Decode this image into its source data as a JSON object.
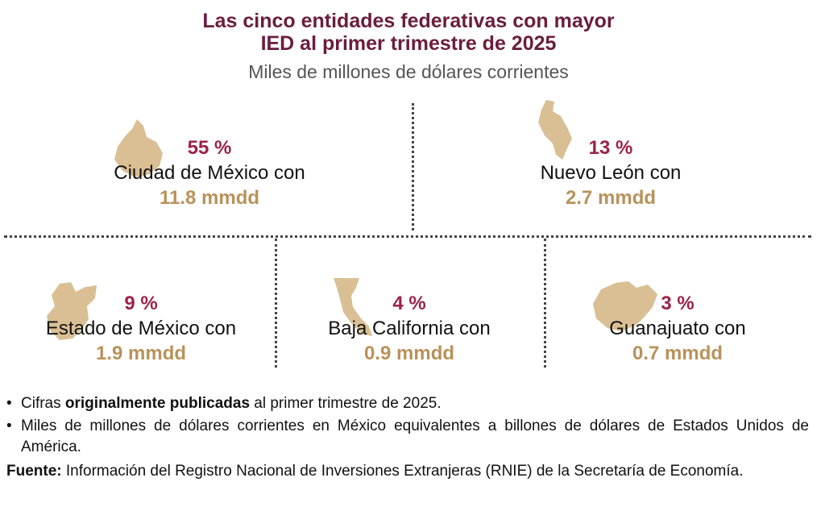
{
  "header": {
    "title_lines": [
      "Las cinco entidades federativas con mayor",
      "IED al primer trimestre de 2025"
    ],
    "subtitle": "Miles de millones de dólares corrientes"
  },
  "entities": [
    {
      "share": "55 %",
      "name": "Ciudad de México con",
      "amount": "11.8 mmdd"
    },
    {
      "share": "13 %",
      "name": "Nuevo León con",
      "amount": "2.7 mmdd"
    },
    {
      "share": "9 %",
      "name": "Estado de México con",
      "amount": "1.9 mmdd"
    },
    {
      "share": "4 %",
      "name": "Baja California con",
      "amount": "0.9 mmdd"
    },
    {
      "share": "3 %",
      "name": "Guanajuato con",
      "amount": "0.7 mmdd"
    }
  ],
  "notes": [
    [
      "Cifras ",
      "originalmente publicadas",
      " al primer trimestre de 2025."
    ],
    [
      "Miles de millones de dólares corrientes en México equivalentes a billones de dólares de Estados Unidos de América."
    ]
  ],
  "source": {
    "label": "Fuente:",
    "text": " Información del Registro Nacional de Inversiones Extranjeras (RNIE) de la Secretaría de Economía."
  }
}
